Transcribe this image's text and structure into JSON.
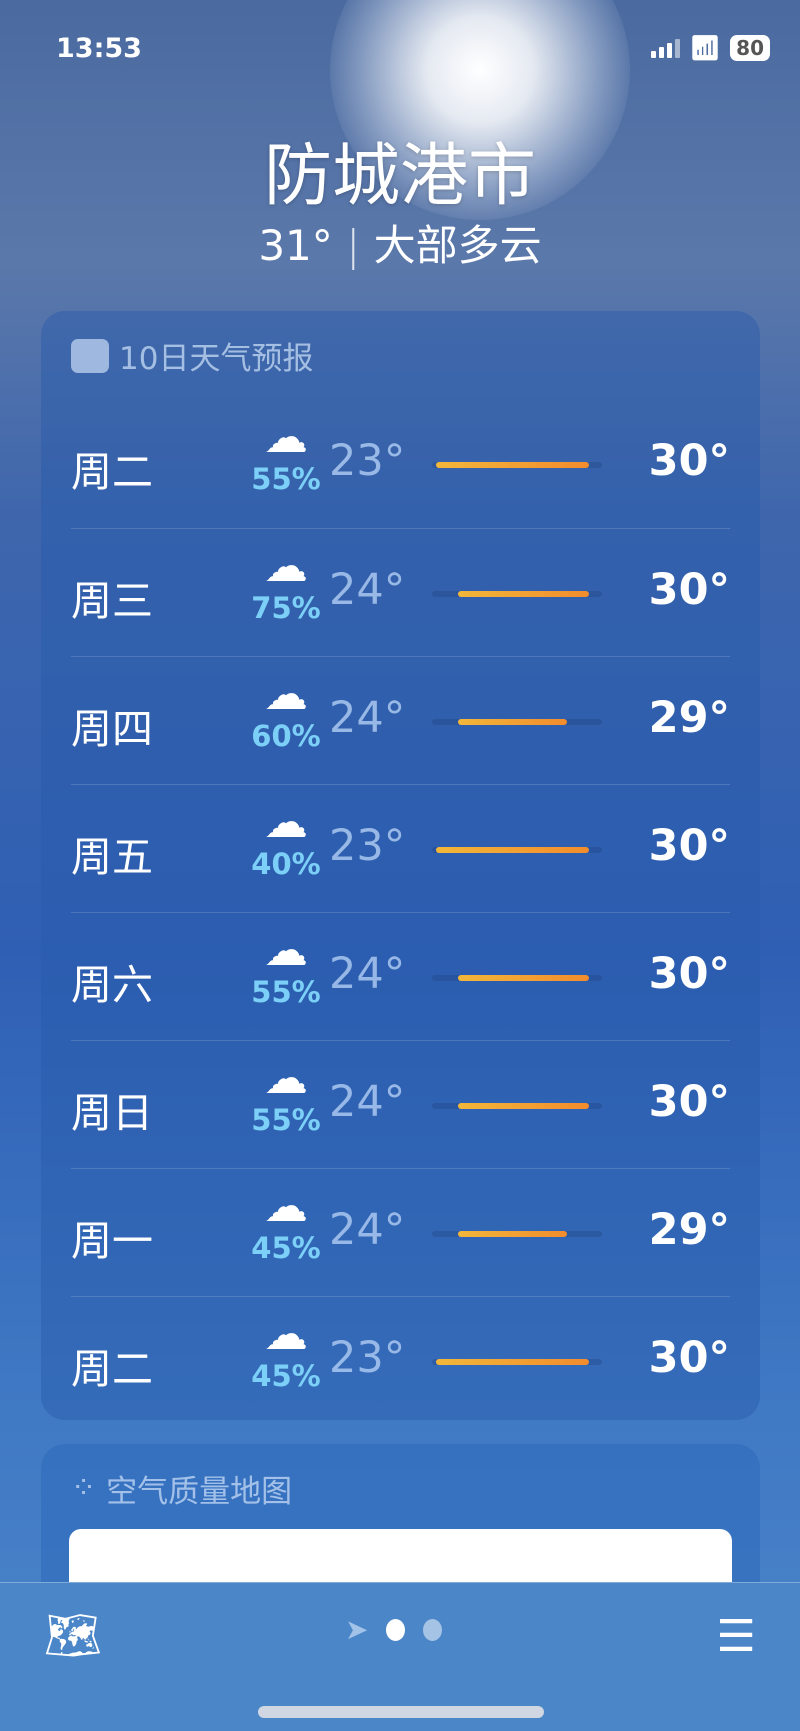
{
  "status": {
    "time": "13:53",
    "battery": "80"
  },
  "location": {
    "city": "防城港市",
    "current_temp": "31°",
    "separator": "|",
    "condition": "大部多云"
  },
  "forecast": {
    "title": "10日天气预报",
    "range": [
      23,
      30
    ],
    "days": [
      {
        "day": "周二",
        "icon": "cloud-rain-icon",
        "precip": "55%",
        "low": "23°",
        "high": "30°",
        "lo": 23,
        "hi": 30
      },
      {
        "day": "周三",
        "icon": "cloud-rain-icon",
        "precip": "75%",
        "low": "24°",
        "high": "30°",
        "lo": 24,
        "hi": 30
      },
      {
        "day": "周四",
        "icon": "cloud-rain-icon",
        "precip": "60%",
        "low": "24°",
        "high": "29°",
        "lo": 24,
        "hi": 29
      },
      {
        "day": "周五",
        "icon": "cloud-rain-icon",
        "precip": "40%",
        "low": "23°",
        "high": "30°",
        "lo": 23,
        "hi": 30
      },
      {
        "day": "周六",
        "icon": "cloud-rain-icon",
        "precip": "55%",
        "low": "24°",
        "high": "30°",
        "lo": 24,
        "hi": 30
      },
      {
        "day": "周日",
        "icon": "cloud-rain-icon",
        "precip": "55%",
        "low": "24°",
        "high": "30°",
        "lo": 24,
        "hi": 30
      },
      {
        "day": "周一",
        "icon": "cloud-rain-icon",
        "precip": "45%",
        "low": "24°",
        "high": "29°",
        "lo": 24,
        "hi": 29
      },
      {
        "day": "周二",
        "icon": "cloud-rain-icon",
        "precip": "45%",
        "low": "23°",
        "high": "30°",
        "lo": 23,
        "hi": 30
      }
    ]
  },
  "air_quality": {
    "title": "空气质量地图"
  },
  "colors": {
    "bar_start": "#f2b73a",
    "bar_end": "#f28c2d",
    "precip": "#7cd0f7"
  }
}
